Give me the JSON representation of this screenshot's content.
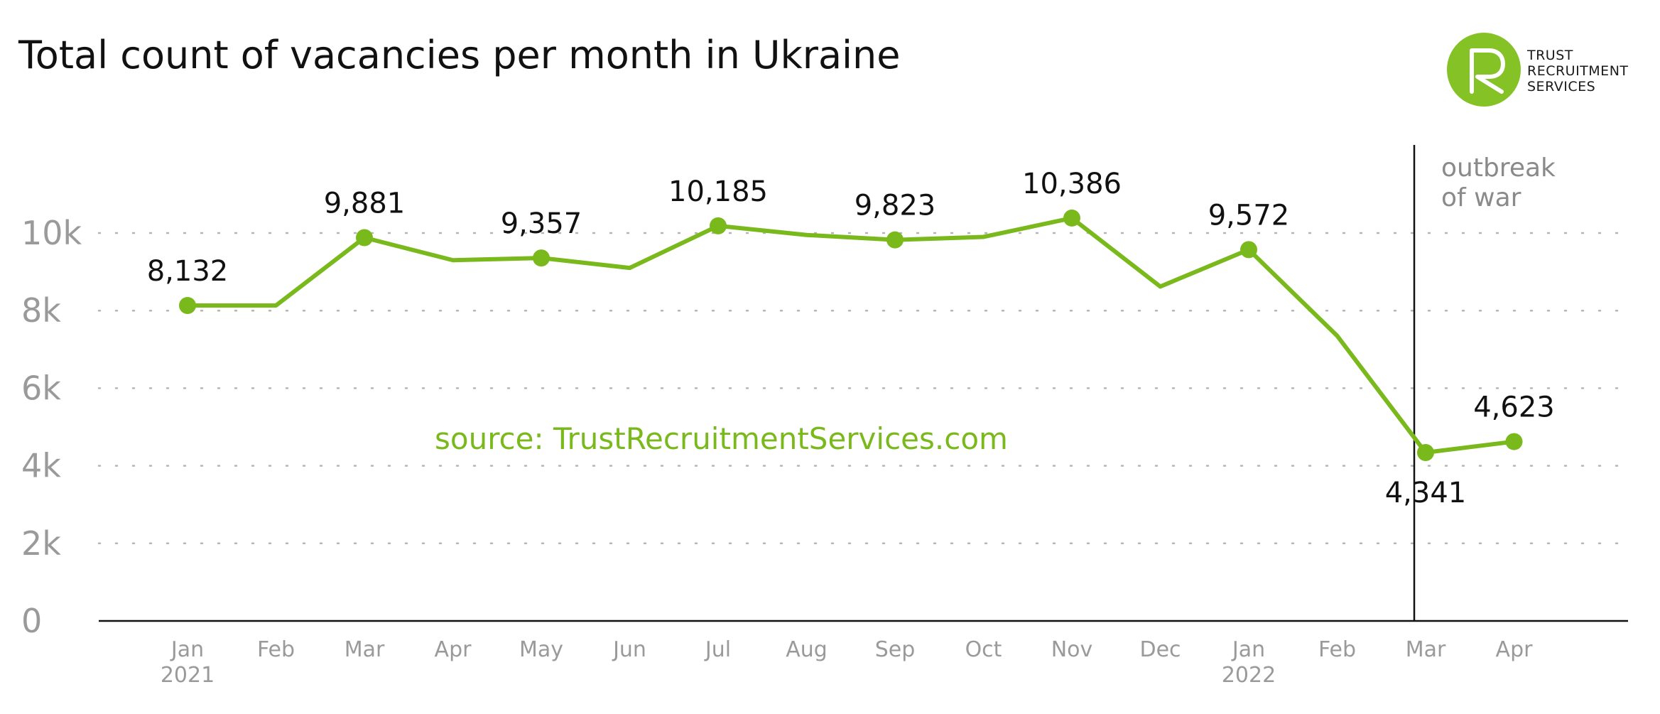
{
  "title": "Total count of vacancies per month in Ukraine",
  "logo": {
    "line1": "TRUST",
    "line2": "RECRUITMENT",
    "line3": "SERVICES"
  },
  "annotation": {
    "line1": "outbreak",
    "line2": "of war"
  },
  "source": "source: TrustRecruitmentServices.com",
  "colors": {
    "line": "#7ab91c",
    "axis_text": "#9a9a9a",
    "label_text": "#111111",
    "logo": "#85c226"
  },
  "chart_data": {
    "type": "line",
    "title": "Total count of vacancies per month in Ukraine",
    "xlabel": "",
    "ylabel": "",
    "categories": [
      "Jan 2021",
      "Feb",
      "Mar",
      "Apr",
      "May",
      "Jun",
      "Jul",
      "Aug",
      "Sep",
      "Oct",
      "Nov",
      "Dec",
      "Jan 2022",
      "Feb",
      "Mar",
      "Apr"
    ],
    "x_tick_labels": [
      [
        "Jan",
        "2021"
      ],
      [
        "Feb"
      ],
      [
        "Mar"
      ],
      [
        "Apr"
      ],
      [
        "May"
      ],
      [
        "Jun"
      ],
      [
        "Jul"
      ],
      [
        "Aug"
      ],
      [
        "Sep"
      ],
      [
        "Oct"
      ],
      [
        "Nov"
      ],
      [
        "Dec"
      ],
      [
        "Jan",
        "2022"
      ],
      [
        "Feb"
      ],
      [
        "Mar"
      ],
      [
        "Apr"
      ]
    ],
    "values": [
      8132,
      8132,
      9881,
      9300,
      9357,
      9100,
      10185,
      9950,
      9823,
      9900,
      10386,
      8620,
      9572,
      7350,
      4341,
      4623
    ],
    "data_labels": [
      "8,132",
      "",
      "9,881",
      "",
      "9,357",
      "",
      "10,185",
      "",
      "9,823",
      "",
      "10,386",
      "",
      "9,572",
      "",
      "4,341",
      "4,623"
    ],
    "markers": [
      true,
      false,
      true,
      false,
      true,
      false,
      true,
      false,
      true,
      false,
      true,
      false,
      true,
      false,
      true,
      true
    ],
    "y_ticks": [
      0,
      2000,
      4000,
      6000,
      8000,
      10000
    ],
    "y_tick_labels": [
      "0",
      "2k",
      "4k",
      "6k",
      "8k",
      "10k"
    ],
    "ylim": [
      0,
      12000
    ],
    "grid": "horizontal dotted",
    "legend": "none",
    "event_marker": {
      "after_category": "Feb 2022",
      "label": "outbreak of war"
    }
  }
}
